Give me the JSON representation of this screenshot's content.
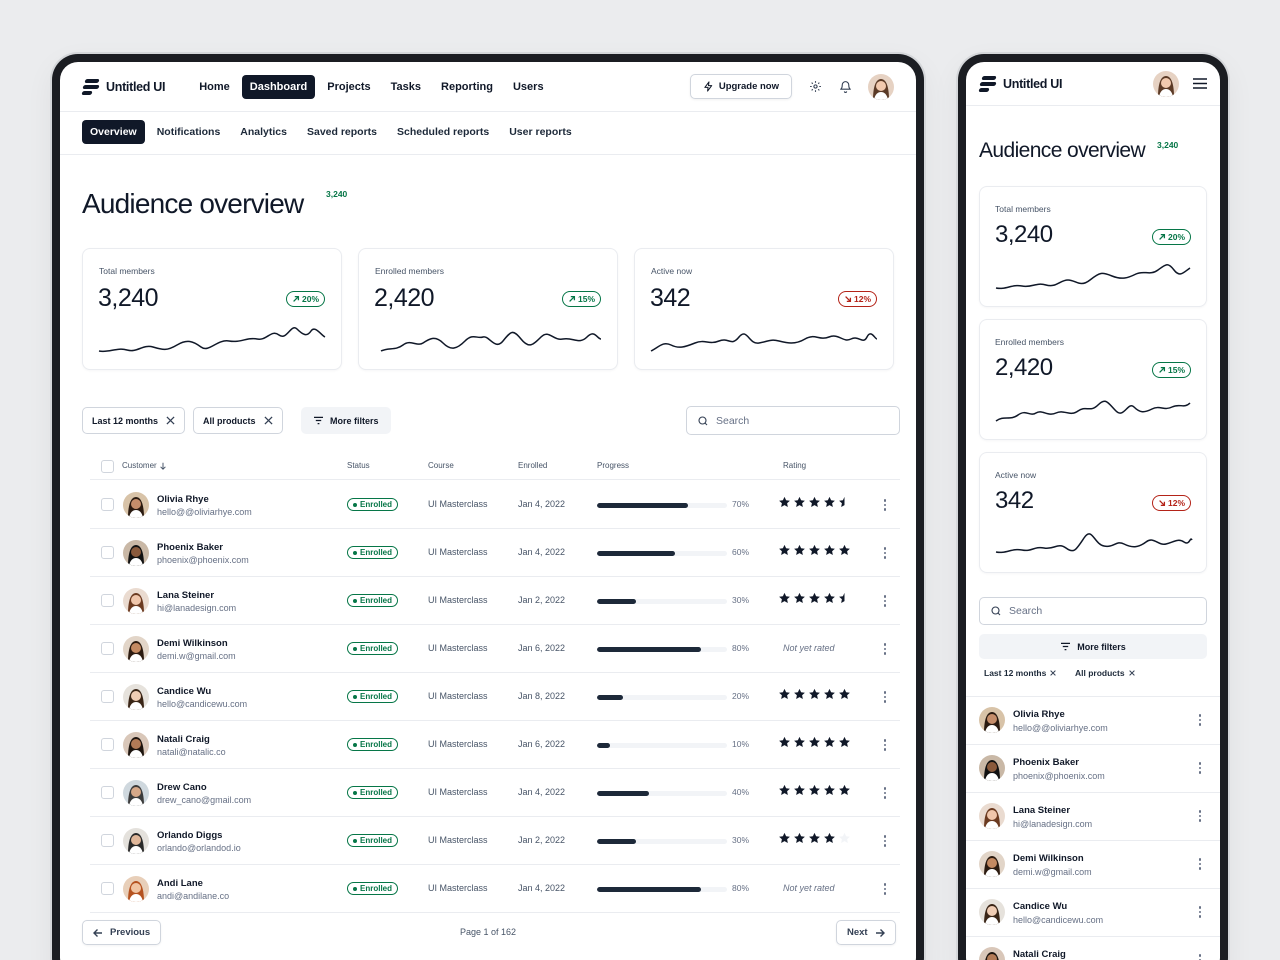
{
  "app": {
    "name": "Untitled UI"
  },
  "nav": {
    "items": [
      "Home",
      "Dashboard",
      "Projects",
      "Tasks",
      "Reporting",
      "Users"
    ],
    "upgrade_label": "Upgrade now"
  },
  "subnav": {
    "items": [
      "Overview",
      "Notifications",
      "Analytics",
      "Saved reports",
      "Scheduled reports",
      "User reports"
    ]
  },
  "page": {
    "title": "Audience overview",
    "title_badge": "3,240"
  },
  "stats": [
    {
      "label": "Total members",
      "value": "3,240",
      "trend": "20%",
      "direction": "up"
    },
    {
      "label": "Enrolled members",
      "value": "2,420",
      "trend": "15%",
      "direction": "up"
    },
    {
      "label": "Active now",
      "value": "342",
      "trend": "12%",
      "direction": "down"
    }
  ],
  "filters": {
    "chip1": "Last 12 months",
    "chip2": "All products",
    "more": "More filters",
    "search_placeholder": "Search"
  },
  "table": {
    "headers": {
      "customer": "Customer",
      "status": "Status",
      "course": "Course",
      "enrolled": "Enrolled",
      "progress": "Progress",
      "rating": "Rating"
    },
    "rows": [
      {
        "name": "Olivia Rhye",
        "email": "hello@@oliviarhye.com",
        "status": "Enrolled",
        "course": "UI Masterclass",
        "date": "Jan 4, 2022",
        "progress": 70,
        "progress_label": "70%",
        "rating": 4.5,
        "rating_text": ""
      },
      {
        "name": "Phoenix Baker",
        "email": "phoenix@phoenix.com",
        "status": "Enrolled",
        "course": "UI Masterclass",
        "date": "Jan 4, 2022",
        "progress": 60,
        "progress_label": "60%",
        "rating": 5,
        "rating_text": ""
      },
      {
        "name": "Lana Steiner",
        "email": "hi@lanadesign.com",
        "status": "Enrolled",
        "course": "UI Masterclass",
        "date": "Jan 2, 2022",
        "progress": 30,
        "progress_label": "30%",
        "rating": 4.5,
        "rating_text": ""
      },
      {
        "name": "Demi Wilkinson",
        "email": "demi.w@gmail.com",
        "status": "Enrolled",
        "course": "UI Masterclass",
        "date": "Jan 6, 2022",
        "progress": 80,
        "progress_label": "80%",
        "rating": 0,
        "rating_text": "Not yet rated"
      },
      {
        "name": "Candice Wu",
        "email": "hello@candicewu.com",
        "status": "Enrolled",
        "course": "UI Masterclass",
        "date": "Jan 8, 2022",
        "progress": 20,
        "progress_label": "20%",
        "rating": 5,
        "rating_text": ""
      },
      {
        "name": "Natali Craig",
        "email": "natali@natalic.co",
        "status": "Enrolled",
        "course": "UI Masterclass",
        "date": "Jan 6, 2022",
        "progress": 10,
        "progress_label": "10%",
        "rating": 5,
        "rating_text": ""
      },
      {
        "name": "Drew Cano",
        "email": "drew_cano@gmail.com",
        "status": "Enrolled",
        "course": "UI Masterclass",
        "date": "Jan 4, 2022",
        "progress": 40,
        "progress_label": "40%",
        "rating": 5,
        "rating_text": ""
      },
      {
        "name": "Orlando Diggs",
        "email": "orlando@orlandod.io",
        "status": "Enrolled",
        "course": "UI Masterclass",
        "date": "Jan 2, 2022",
        "progress": 30,
        "progress_label": "30%",
        "rating": 4,
        "rating_text": ""
      },
      {
        "name": "Andi Lane",
        "email": "andi@andilane.co",
        "status": "Enrolled",
        "course": "UI Masterclass",
        "date": "Jan 4, 2022",
        "progress": 80,
        "progress_label": "80%",
        "rating": 0,
        "rating_text": "Not yet rated"
      }
    ]
  },
  "pagination": {
    "previous": "Previous",
    "next": "Next",
    "info": "Page 1 of 162"
  },
  "mobile": {
    "rows": [
      {
        "name": "Olivia Rhye",
        "email": "hello@@oliviarhye.com"
      },
      {
        "name": "Phoenix Baker",
        "email": "phoenix@phoenix.com"
      },
      {
        "name": "Lana Steiner",
        "email": "hi@lanadesign.com"
      },
      {
        "name": "Demi Wilkinson",
        "email": "demi.w@gmail.com"
      },
      {
        "name": "Candice Wu",
        "email": "hello@candicewu.com"
      },
      {
        "name": "Natali Craig",
        "email": ""
      }
    ]
  },
  "icons": {
    "logo": "untitled-ui-logo-icon",
    "upgrade": "lightning-icon",
    "settings": "gear-icon",
    "notifications": "bell-icon",
    "menu": "hamburger-icon",
    "search": "search-icon",
    "filter": "filter-lines-icon",
    "close": "close-icon",
    "sort": "arrow-down-icon",
    "trend_up": "arrow-up-right-icon",
    "trend_down": "arrow-down-right-icon",
    "star": "star-icon",
    "more": "dots-vertical-icon",
    "prev": "arrow-left-icon",
    "next": "arrow-right-icon"
  },
  "colors": {
    "primary": "#101828",
    "success": "#067647",
    "error": "#b42318",
    "border": "#eaecf0"
  }
}
